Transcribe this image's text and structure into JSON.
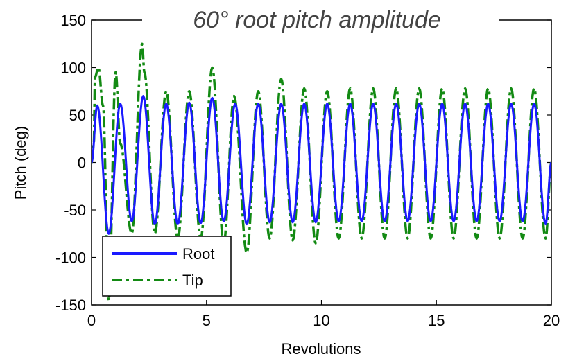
{
  "chart_data": {
    "type": "line",
    "title": "60° root pitch amplitude",
    "xlabel": "Revolutions",
    "ylabel": "Pitch (deg)",
    "xlim": [
      0,
      20
    ],
    "ylim": [
      -150,
      150
    ],
    "xticks": [
      0,
      5,
      10,
      15,
      20
    ],
    "yticks": [
      -150,
      -100,
      -50,
      0,
      50,
      100,
      150
    ],
    "grid": false,
    "legend_position": "bottom-left",
    "series": [
      {
        "name": "Root",
        "color": "#1a1aff",
        "line_style": "solid",
        "x": [
          0.0,
          0.25,
          0.75,
          1.25,
          1.75,
          2.25,
          2.75,
          3.25,
          3.75,
          4.25,
          4.75,
          5.25,
          5.75,
          6.25,
          6.75,
          7.25,
          7.75,
          8.25,
          8.75,
          9.25,
          9.75,
          10.25,
          10.75,
          11.25,
          11.75,
          12.25,
          12.75,
          13.25,
          13.75,
          14.25,
          14.75,
          15.25,
          15.75,
          16.25,
          16.75,
          17.25,
          17.75,
          18.25,
          18.75,
          19.25,
          19.75,
          20.0
        ],
        "y": [
          0,
          60,
          -75,
          62,
          -62,
          70,
          -65,
          62,
          -65,
          63,
          -64,
          68,
          -62,
          62,
          -65,
          62,
          -63,
          62,
          -63,
          62,
          -63,
          62,
          -62,
          62,
          -62,
          62,
          -62,
          62,
          -62,
          62,
          -62,
          62,
          -62,
          62,
          -62,
          62,
          -62,
          62,
          -62,
          62,
          -65,
          0
        ]
      },
      {
        "name": "Tip",
        "color": "#138a13",
        "line_style": "dashdot",
        "x": [
          0.0,
          0.1,
          0.15,
          0.3,
          0.5,
          0.75,
          1.05,
          1.25,
          1.75,
          2.2,
          2.3,
          2.75,
          3.25,
          3.75,
          4.25,
          4.75,
          5.25,
          5.75,
          6.2,
          6.75,
          7.25,
          7.75,
          8.25,
          8.75,
          9.25,
          9.75,
          10.25,
          10.75,
          11.25,
          11.75,
          12.25,
          12.75,
          13.25,
          13.75,
          14.25,
          14.75,
          15.25,
          15.75,
          16.25,
          16.75,
          17.25,
          17.75,
          18.25,
          18.75,
          19.25,
          19.75,
          20.0
        ],
        "y": [
          0,
          20,
          90,
          100,
          60,
          -145,
          95,
          20,
          -75,
          125,
          95,
          -75,
          75,
          -80,
          75,
          -80,
          100,
          -85,
          70,
          -95,
          75,
          -80,
          88,
          -82,
          78,
          -85,
          75,
          -80,
          78,
          -80,
          78,
          -80,
          78,
          -80,
          78,
          -80,
          78,
          -80,
          78,
          -80,
          78,
          -80,
          78,
          -80,
          78,
          -80,
          0
        ]
      }
    ]
  }
}
